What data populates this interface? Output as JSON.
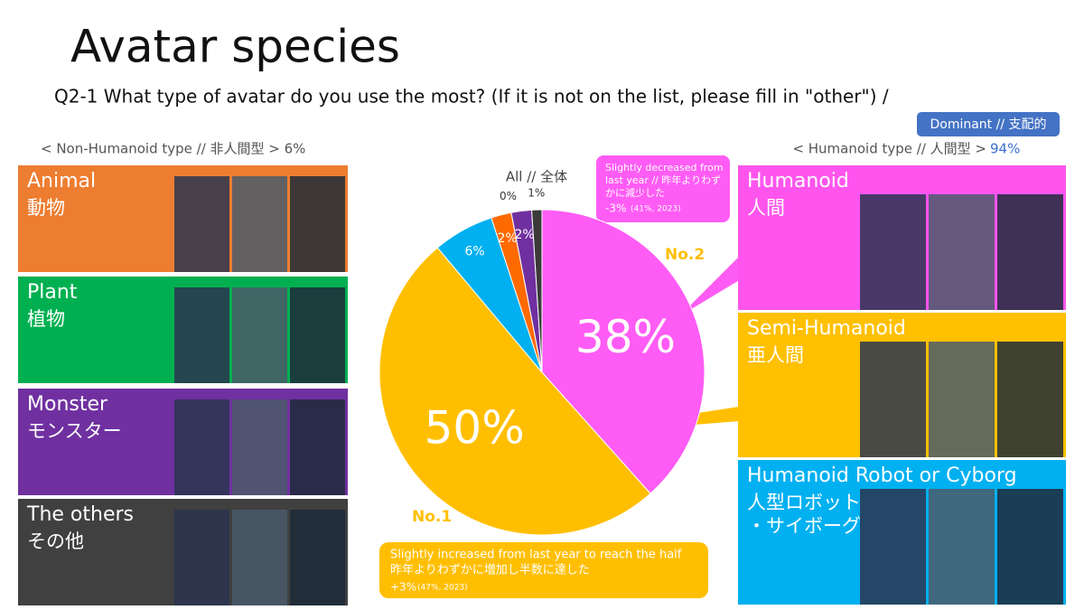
{
  "header": {
    "title": "Avatar species",
    "question": "Q2-1 What type of avatar do you use the most? (If it is not on the list, please fill in \"other\") /",
    "badge": "Dominant // 支配的"
  },
  "left": {
    "heading": "< Non-Humanoid type // 非人間型 > 6%",
    "panels": [
      {
        "en": "Animal",
        "ja": [
          "動物"
        ],
        "color": "#ed7d31"
      },
      {
        "en": "Plant",
        "ja": [
          "植物"
        ],
        "color": "#00b050"
      },
      {
        "en": "Monster",
        "ja": [
          "モンスター"
        ],
        "color": "#7030a0"
      },
      {
        "en": "The others",
        "ja": [
          "その他"
        ],
        "color": "#404040"
      }
    ]
  },
  "right": {
    "heading": "< Humanoid type // 人間型 >",
    "heading_value": "94%",
    "panels": [
      {
        "en": "Humanoid",
        "ja": [
          "人間"
        ],
        "color": "#ff55ee"
      },
      {
        "en": "Semi-Humanoid",
        "ja": [
          "亜人間"
        ],
        "color": "#ffc000"
      },
      {
        "en": "Humanoid Robot or Cyborg",
        "ja": [
          "人型ロボット",
          "・サイボーグ"
        ],
        "color": "#00b0f0"
      }
    ]
  },
  "chart_data": {
    "type": "pie",
    "title": "All // 全体",
    "values": [
      38,
      50,
      6,
      2,
      0,
      2,
      1
    ],
    "value_labels": [
      "38%",
      "50%",
      "6%",
      "2%",
      "0%",
      "2%",
      "1%"
    ],
    "colors": [
      "#ff5cf5",
      "#ffbf00",
      "#00b0f0",
      "#ff6a00",
      "#00b050",
      "#7030a0",
      "#3a3a3a"
    ],
    "annotations": {
      "rank1": "No.1",
      "rank2": "No.2",
      "decrease": {
        "lines": [
          "Slightly decreased from",
          "last year // 昨年よりわず",
          "かに減少した"
        ],
        "change": "-3%",
        "previous": "(41%, 2023)"
      },
      "increase": {
        "lines": [
          "Slightly increased from last year to reach the half",
          "昨年よりわずかに増加し半数に達した"
        ],
        "change": "+3%",
        "previous": "(47%, 2023)"
      }
    }
  }
}
